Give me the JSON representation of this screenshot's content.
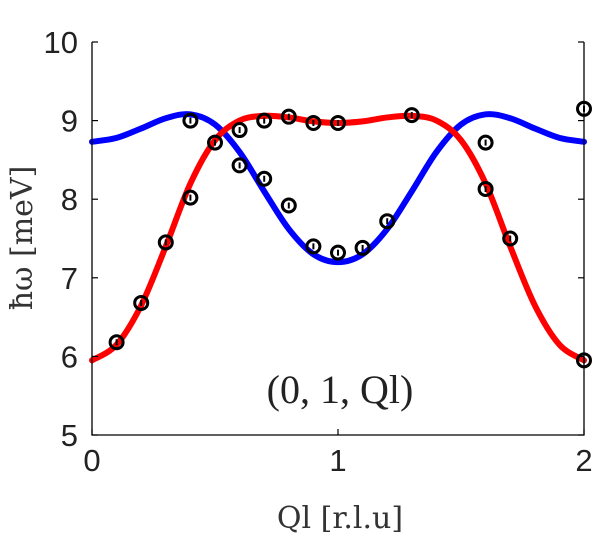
{
  "chart_data": {
    "type": "scatter",
    "title": "",
    "xlabel": "Ql [r.l.u]",
    "ylabel": "ħω [meV]",
    "annotation": "(0, 1, Ql)",
    "xlim": [
      0,
      2
    ],
    "ylim": [
      5,
      10
    ],
    "xticks": [
      "0",
      "1",
      "2"
    ],
    "yticks": [
      "5",
      "6",
      "7",
      "8",
      "9",
      "10"
    ],
    "grid": false,
    "points": {
      "name": "data",
      "color": "#000000",
      "x": [
        0.1,
        0.2,
        0.3,
        0.4,
        0.4,
        0.5,
        0.6,
        0.6,
        0.7,
        0.7,
        0.8,
        0.8,
        0.9,
        0.9,
        1.0,
        1.0,
        1.1,
        1.2,
        1.3,
        1.6,
        1.6,
        1.7,
        2.0,
        2.0
      ],
      "y": [
        6.18,
        6.68,
        7.45,
        8.02,
        9.0,
        8.72,
        8.43,
        8.88,
        9.0,
        8.26,
        9.05,
        7.92,
        8.97,
        7.4,
        8.97,
        7.32,
        7.38,
        7.72,
        9.07,
        8.72,
        8.13,
        7.5,
        9.15,
        5.95
      ]
    },
    "series": [
      {
        "name": "blue-curve",
        "color": "#0000ff",
        "x": [
          0,
          0.1,
          0.2,
          0.3,
          0.4,
          0.5,
          0.6,
          0.7,
          0.8,
          0.9,
          1.0,
          1.1,
          1.2,
          1.3,
          1.4,
          1.5,
          1.6,
          1.7,
          1.8,
          1.9,
          2.0
        ],
        "y": [
          8.73,
          8.78,
          8.9,
          9.03,
          9.08,
          8.95,
          8.6,
          8.1,
          7.62,
          7.3,
          7.2,
          7.3,
          7.62,
          8.1,
          8.6,
          8.95,
          9.08,
          9.03,
          8.9,
          8.78,
          8.73
        ]
      },
      {
        "name": "red-curve",
        "color": "#ff0000",
        "x": [
          0,
          0.1,
          0.2,
          0.3,
          0.4,
          0.5,
          0.6,
          0.7,
          0.8,
          0.9,
          1.0,
          1.1,
          1.2,
          1.3,
          1.4,
          1.5,
          1.6,
          1.7,
          1.8,
          1.9,
          2.0
        ],
        "y": [
          5.95,
          6.15,
          6.65,
          7.4,
          8.2,
          8.75,
          9.0,
          9.06,
          9.04,
          8.99,
          8.97,
          8.99,
          9.04,
          9.06,
          9.0,
          8.75,
          8.2,
          7.4,
          6.65,
          6.15,
          5.95
        ]
      }
    ]
  }
}
